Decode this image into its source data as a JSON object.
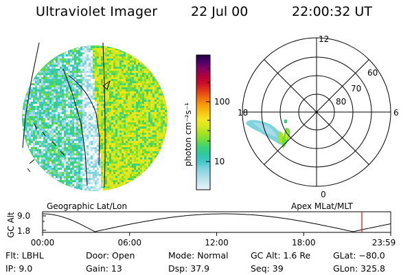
{
  "header": {
    "title": "Ultraviolet Imager",
    "date": "22 Jul 00",
    "time": "22:00:32 UT"
  },
  "colorbar": {
    "unit_label": "photon cm⁻²s⁻¹",
    "tick_labels": [
      "100",
      "10"
    ],
    "colors": [
      "#e6f4f8",
      "#c8e8f0",
      "#a8dce8",
      "#7fd3dc",
      "#3fc8c8",
      "#2ec8a4",
      "#3cd27a",
      "#6ede3c",
      "#a6e420",
      "#d8e81c",
      "#f5e420",
      "#f8c010",
      "#f89a08",
      "#f06a0a",
      "#e03818",
      "#cc0d28",
      "#b3003c",
      "#8a0060",
      "#50006a",
      "#200040"
    ]
  },
  "geo_panel": {
    "label": "Geographic Lat/Lon"
  },
  "polar_panel": {
    "label": "Apex MLat/MLT",
    "mlt_labels": [
      "12",
      "18",
      "6",
      "0"
    ],
    "lat_labels": [
      "60",
      "70",
      "80"
    ]
  },
  "altitude_plot": {
    "ylabel": "GC Alt",
    "y_ticks": [
      "9.0",
      "1.8"
    ],
    "x_ticks": [
      "00:00",
      "06:00",
      "12:00",
      "18:00",
      "23:59"
    ],
    "marker_time_hours": 22.01,
    "marker_color": "#e00000"
  },
  "info": {
    "flt": "Flt: LBHL",
    "ip": "IP:  9.0",
    "door": "Door: Open",
    "gain": "Gain: 13",
    "mode": "Mode: Normal",
    "dsp": "Dsp:   37.9",
    "gcalt": "GC Alt: 1.6 Re",
    "seq": "Seq: 39",
    "glat": "GLat: −80.0",
    "glon": "GLon: 325.8"
  }
}
